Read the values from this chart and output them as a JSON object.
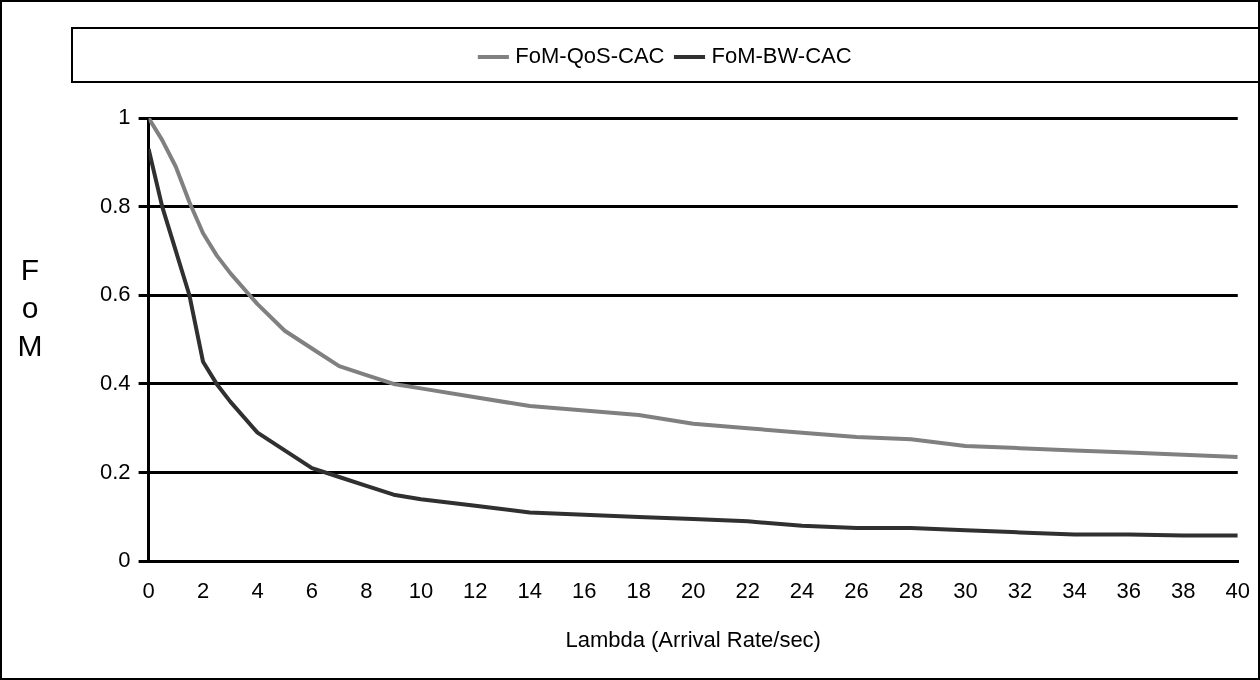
{
  "chart_data": {
    "type": "line",
    "xlabel": "Lambda (Arrival Rate/sec)",
    "ylabel": "FoM",
    "x": [
      0,
      0.5,
      1,
      1.5,
      2,
      2.5,
      3,
      4,
      5,
      6,
      7,
      8,
      9,
      10,
      12,
      14,
      16,
      18,
      20,
      22,
      24,
      26,
      28,
      30,
      32,
      34,
      36,
      38,
      40
    ],
    "series": [
      {
        "name": "FoM-QoS-CAC",
        "color": "#808080",
        "values": [
          1,
          0.95,
          0.89,
          0.81,
          0.74,
          0.69,
          0.65,
          0.58,
          0.52,
          0.48,
          0.44,
          0.42,
          0.4,
          0.39,
          0.37,
          0.35,
          0.34,
          0.33,
          0.31,
          0.3,
          0.29,
          0.28,
          0.275,
          0.26,
          0.255,
          0.25,
          0.245,
          0.24,
          0.235
        ]
      },
      {
        "name": "FoM-BW-CAC",
        "color": "#303030",
        "values": [
          0.93,
          0.8,
          0.7,
          0.6,
          0.45,
          0.4,
          0.36,
          0.29,
          0.25,
          0.21,
          0.19,
          0.17,
          0.15,
          0.14,
          0.125,
          0.11,
          0.105,
          0.1,
          0.095,
          0.09,
          0.08,
          0.075,
          0.075,
          0.07,
          0.065,
          0.06,
          0.06,
          0.058,
          0.058
        ]
      }
    ],
    "xlim": [
      0,
      40
    ],
    "xticks": [
      0,
      2,
      4,
      6,
      8,
      10,
      12,
      14,
      16,
      18,
      20,
      22,
      24,
      26,
      28,
      30,
      32,
      34,
      36,
      38,
      40
    ],
    "ylim": [
      0,
      1
    ],
    "yticks": [
      0,
      0.2,
      0.4,
      0.6,
      0.8,
      1
    ],
    "grid": "y",
    "legend": "top",
    "marker": "none",
    "line_style": "solid"
  }
}
